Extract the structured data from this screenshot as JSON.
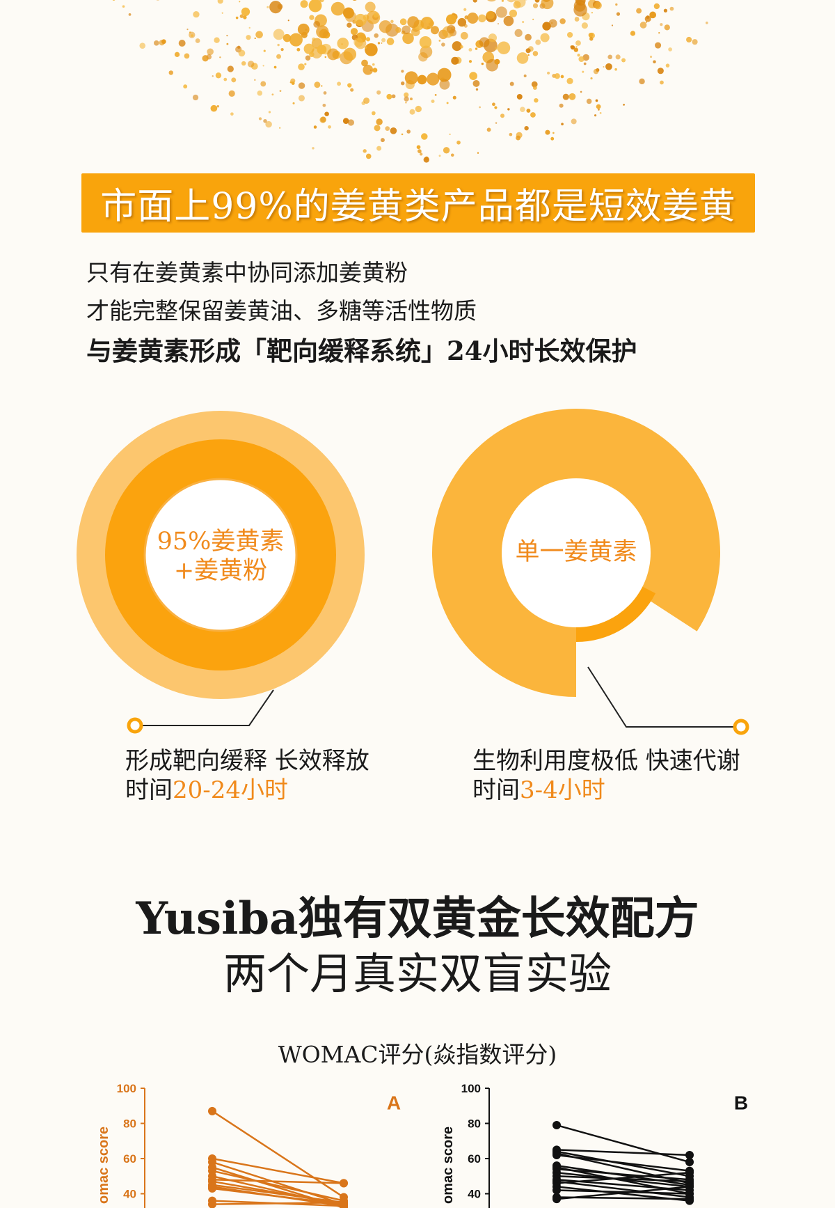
{
  "banner": {
    "text": "市面上99%的姜黄类产品都是短效姜黄"
  },
  "intro": {
    "line1": "只有在姜黄素中协同添加姜黄粉",
    "line2": "才能完整保留姜黄油、多糖等活性物质",
    "line3": "与姜黄素形成「靶向缓释系统」24小时长效保护"
  },
  "left_circle": {
    "label_line1": "95%姜黄素",
    "label_line2": "+姜黄粉",
    "caption_line1": "形成靶向缓释 长效释放",
    "caption_prefix": "时间",
    "caption_highlight": "20-24小时"
  },
  "right_circle": {
    "label": "单一姜黄素",
    "caption_line1": "生物利用度极低 快速代谢",
    "caption_prefix": "时间",
    "caption_highlight": "3-4小时"
  },
  "colors": {
    "accent": "#f9a40c",
    "highlight": "#f08a1c",
    "ring_light": "#fcc66e",
    "ring_mid": "#fba30e",
    "donut": "#fbb53c"
  },
  "headline": {
    "line1": "Yusiba独有双黄金长效配方",
    "line2": "两个月真实双盲实验"
  },
  "chart_title": "WOMAC评分(焱指数评分)",
  "chart_data": [
    {
      "type": "line",
      "panel_label": "A",
      "ylabel": "omac score",
      "yticks": [
        100,
        80,
        60,
        40
      ],
      "ylim": [
        40,
        100
      ],
      "color": "#d9751a",
      "pairs": [
        [
          87,
          38
        ],
        [
          60,
          46
        ],
        [
          58,
          34
        ],
        [
          55,
          32
        ],
        [
          53,
          36
        ],
        [
          50,
          33
        ],
        [
          48,
          46
        ],
        [
          47,
          34
        ],
        [
          45,
          35
        ],
        [
          44,
          33
        ],
        [
          43,
          34
        ],
        [
          36,
          33
        ],
        [
          34,
          35
        ]
      ]
    },
    {
      "type": "line",
      "panel_label": "B",
      "ylabel": "omac score",
      "yticks": [
        100,
        80,
        60,
        40
      ],
      "ylim": [
        40,
        100
      ],
      "color": "#111111",
      "pairs": [
        [
          79,
          58
        ],
        [
          65,
          62
        ],
        [
          64,
          50
        ],
        [
          63,
          46
        ],
        [
          62,
          53
        ],
        [
          56,
          45
        ],
        [
          55,
          40
        ],
        [
          54,
          48
        ],
        [
          52,
          44
        ],
        [
          50,
          47
        ],
        [
          48,
          42
        ],
        [
          47,
          38
        ],
        [
          46,
          52
        ],
        [
          44,
          36
        ],
        [
          42,
          40
        ],
        [
          38,
          37
        ],
        [
          37,
          44
        ]
      ]
    }
  ]
}
